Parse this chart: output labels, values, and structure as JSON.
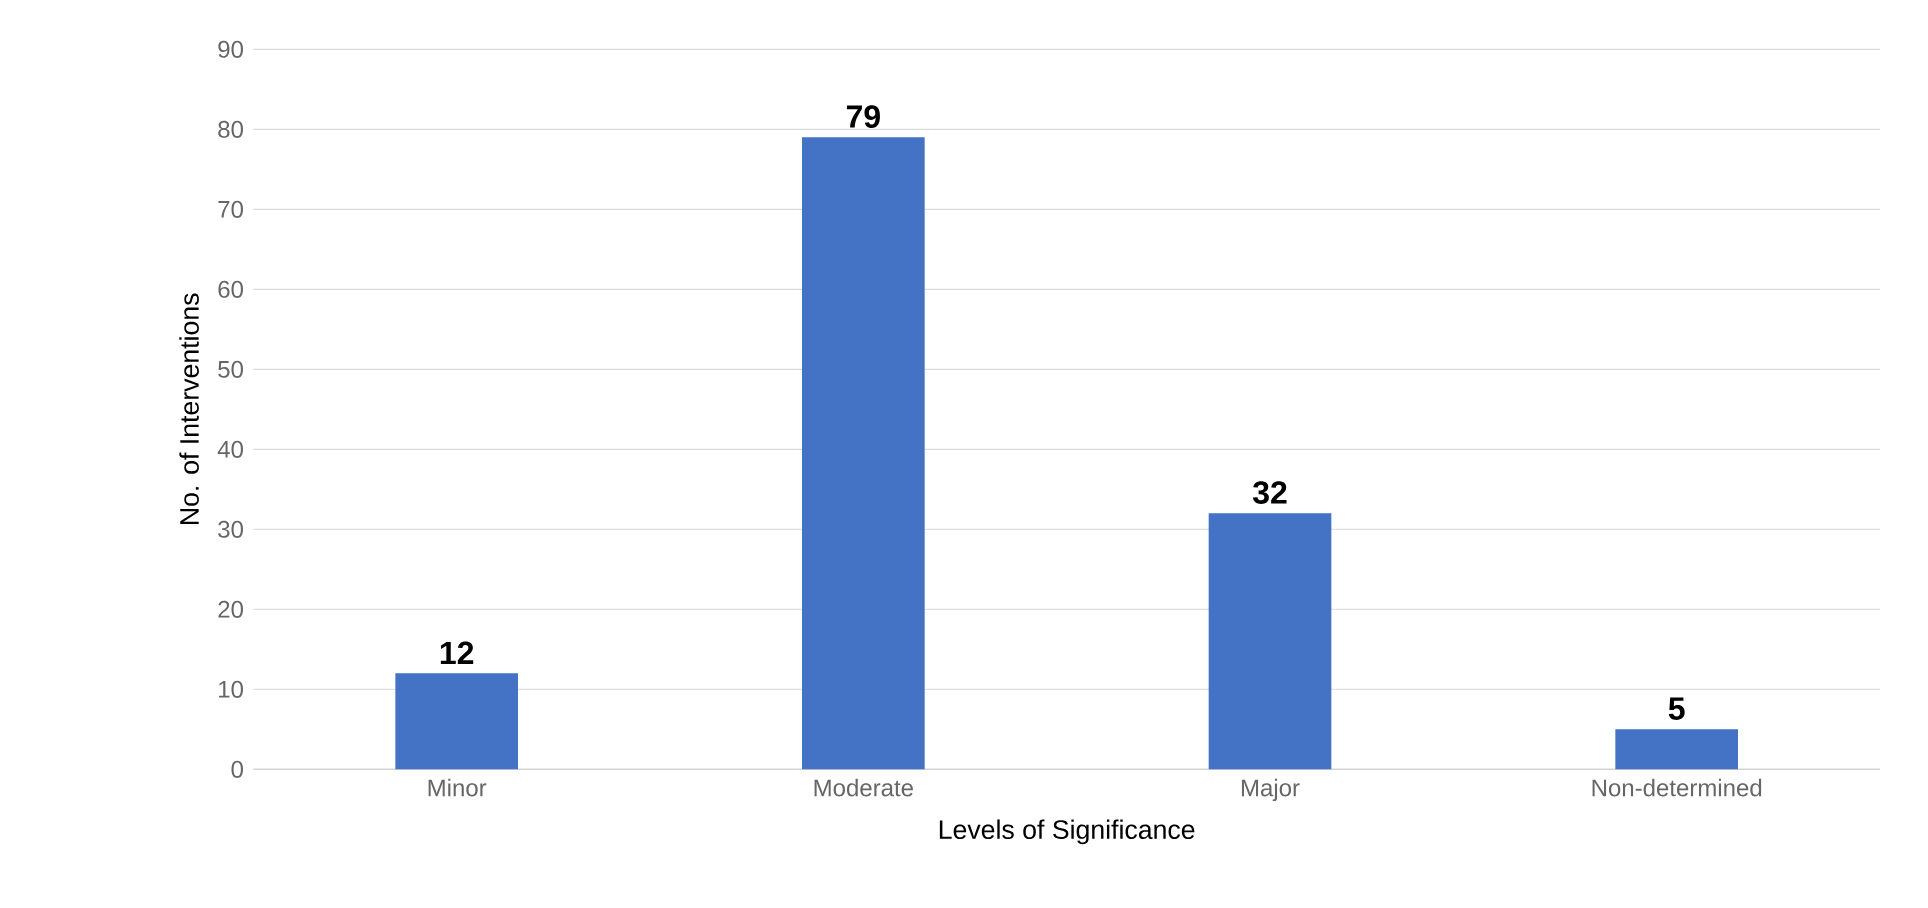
{
  "chart_data": {
    "type": "bar",
    "xlabel": "Levels of Significance",
    "ylabel": "No. of Interventions",
    "categories": [
      "Minor",
      "Moderate",
      "Major",
      "Non-determined"
    ],
    "values": [
      12,
      79,
      32,
      5
    ],
    "color": "#4472c4",
    "ylim": [
      0,
      90
    ],
    "yticks": [
      0,
      10,
      20,
      30,
      40,
      50,
      60,
      70,
      80,
      90
    ],
    "grid": "y",
    "data_labels": true
  }
}
